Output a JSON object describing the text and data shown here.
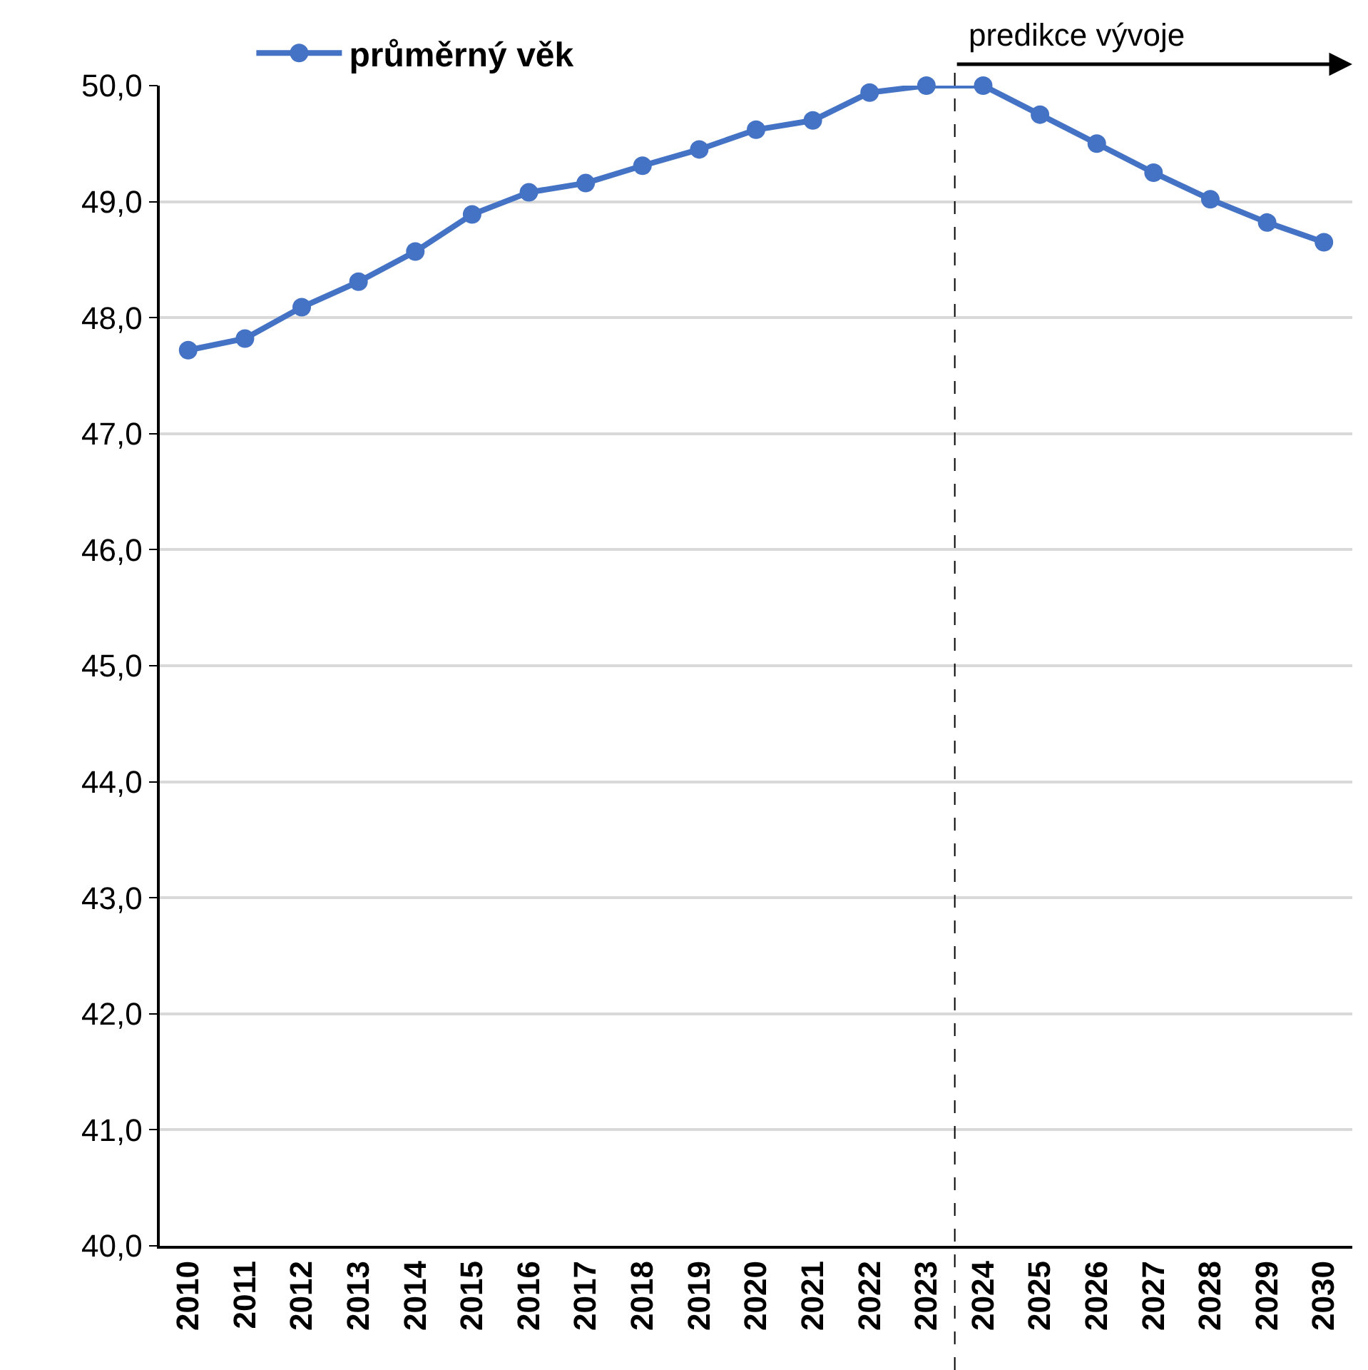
{
  "chart_data": {
    "type": "line",
    "x": [
      2010,
      2011,
      2012,
      2013,
      2014,
      2015,
      2016,
      2017,
      2018,
      2019,
      2020,
      2021,
      2022,
      2023,
      2024,
      2025,
      2026,
      2027,
      2028,
      2029,
      2030
    ],
    "series": [
      {
        "name": "průměrný věk",
        "color": "#4472c4",
        "values": [
          47.72,
          47.82,
          48.09,
          48.31,
          48.57,
          48.89,
          49.08,
          49.16,
          49.31,
          49.45,
          49.62,
          49.7,
          49.94,
          50.0,
          50.0,
          49.75,
          49.5,
          49.25,
          49.02,
          48.82,
          48.65
        ]
      }
    ],
    "xlim": [
      2009.5,
      2030.5
    ],
    "xticks": [
      2010,
      2011,
      2012,
      2013,
      2014,
      2015,
      2016,
      2017,
      2018,
      2019,
      2020,
      2021,
      2022,
      2023,
      2024,
      2025,
      2026,
      2027,
      2028,
      2029,
      2030
    ],
    "ylim": [
      40,
      50
    ],
    "yticks": [
      {
        "value": 40,
        "label": "40,0"
      },
      {
        "value": 41,
        "label": "41,0"
      },
      {
        "value": 42,
        "label": "42,0"
      },
      {
        "value": 43,
        "label": "43,0"
      },
      {
        "value": 44,
        "label": "44,0"
      },
      {
        "value": 45,
        "label": "45,0"
      },
      {
        "value": 46,
        "label": "46,0"
      },
      {
        "value": 47,
        "label": "47,0"
      },
      {
        "value": 48,
        "label": "48,0"
      },
      {
        "value": 49,
        "label": "49,0"
      },
      {
        "value": 50,
        "label": "50,0"
      }
    ],
    "grid": "y",
    "legend": "top left",
    "marker": "circle",
    "line_style": "solid",
    "ref_lines": [
      {
        "axis": "x",
        "value": 2023.5,
        "label": "predikce vývoje",
        "color": "#000000",
        "line_style": "dashed"
      }
    ]
  }
}
